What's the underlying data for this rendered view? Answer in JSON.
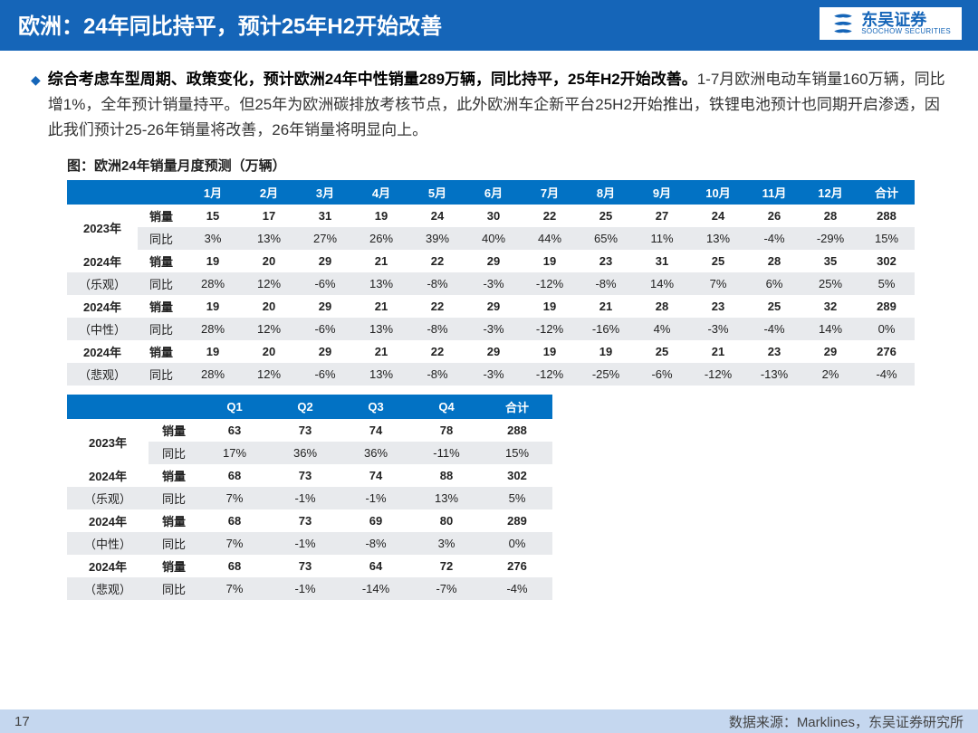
{
  "title": "欧洲：24年同比持平，预计25年H2开始改善",
  "logo": {
    "cn": "东吴证券",
    "en": "SOOCHOW SECURITIES"
  },
  "para_bold": "综合考虑车型周期、政策变化，预计欧洲24年中性销量289万辆，同比持平，25年H2开始改善。",
  "para_rest": "1-7月欧洲电动车销量160万辆，同比增1%，全年预计销量持平。但25年为欧洲碳排放考核节点，此外欧洲车企新平台25H2开始推出，铁锂电池预计也同期开启渗透，因此我们预计25-26年销量将改善，26年销量将明显向上。",
  "fig_title": "图：欧洲24年销量月度预测（万辆）",
  "table1": {
    "header_bg": "#0272c4",
    "columns": [
      "",
      "",
      "1月",
      "2月",
      "3月",
      "4月",
      "5月",
      "6月",
      "7月",
      "8月",
      "9月",
      "10月",
      "11月",
      "12月",
      "合计"
    ],
    "groups": [
      {
        "label": "2023年",
        "sub": "",
        "rows": [
          {
            "k": "销量",
            "v": [
              "15",
              "17",
              "31",
              "19",
              "24",
              "30",
              "22",
              "25",
              "27",
              "24",
              "26",
              "28",
              "288"
            ]
          },
          {
            "k": "同比",
            "v": [
              "3%",
              "13%",
              "27%",
              "26%",
              "39%",
              "40%",
              "44%",
              "65%",
              "11%",
              "13%",
              "-4%",
              "-29%",
              "15%"
            ],
            "shade": true
          }
        ]
      },
      {
        "label": "2024年",
        "sub": "（乐观）",
        "rows": [
          {
            "k": "销量",
            "v": [
              "19",
              "20",
              "29",
              "21",
              "22",
              "29",
              "19",
              "23",
              "31",
              "25",
              "28",
              "35",
              "302"
            ]
          },
          {
            "k": "同比",
            "v": [
              "28%",
              "12%",
              "-6%",
              "13%",
              "-8%",
              "-3%",
              "-12%",
              "-8%",
              "14%",
              "7%",
              "6%",
              "25%",
              "5%"
            ],
            "shade": true
          }
        ]
      },
      {
        "label": "2024年",
        "sub": "（中性）",
        "rows": [
          {
            "k": "销量",
            "v": [
              "19",
              "20",
              "29",
              "21",
              "22",
              "29",
              "19",
              "21",
              "28",
              "23",
              "25",
              "32",
              "289"
            ]
          },
          {
            "k": "同比",
            "v": [
              "28%",
              "12%",
              "-6%",
              "13%",
              "-8%",
              "-3%",
              "-12%",
              "-16%",
              "4%",
              "-3%",
              "-4%",
              "14%",
              "0%"
            ],
            "shade": true
          }
        ]
      },
      {
        "label": "2024年",
        "sub": "（悲观）",
        "rows": [
          {
            "k": "销量",
            "v": [
              "19",
              "20",
              "29",
              "21",
              "22",
              "29",
              "19",
              "19",
              "25",
              "21",
              "23",
              "29",
              "276"
            ]
          },
          {
            "k": "同比",
            "v": [
              "28%",
              "12%",
              "-6%",
              "13%",
              "-8%",
              "-3%",
              "-12%",
              "-25%",
              "-6%",
              "-12%",
              "-13%",
              "2%",
              "-4%"
            ],
            "shade": true
          }
        ]
      }
    ]
  },
  "table2": {
    "columns": [
      "",
      "",
      "Q1",
      "Q2",
      "Q3",
      "Q4",
      "合计"
    ],
    "groups": [
      {
        "label": "2023年",
        "sub": "",
        "rows": [
          {
            "k": "销量",
            "v": [
              "63",
              "73",
              "74",
              "78",
              "288"
            ]
          },
          {
            "k": "同比",
            "v": [
              "17%",
              "36%",
              "36%",
              "-11%",
              "15%"
            ],
            "shade": true
          }
        ]
      },
      {
        "label": "2024年",
        "sub": "（乐观）",
        "rows": [
          {
            "k": "销量",
            "v": [
              "68",
              "73",
              "74",
              "88",
              "302"
            ]
          },
          {
            "k": "同比",
            "v": [
              "7%",
              "-1%",
              "-1%",
              "13%",
              "5%"
            ],
            "shade": true
          }
        ]
      },
      {
        "label": "2024年",
        "sub": "（中性）",
        "rows": [
          {
            "k": "销量",
            "v": [
              "68",
              "73",
              "69",
              "80",
              "289"
            ]
          },
          {
            "k": "同比",
            "v": [
              "7%",
              "-1%",
              "-8%",
              "3%",
              "0%"
            ],
            "shade": true
          }
        ]
      },
      {
        "label": "2024年",
        "sub": "（悲观）",
        "rows": [
          {
            "k": "销量",
            "v": [
              "68",
              "73",
              "64",
              "72",
              "276"
            ]
          },
          {
            "k": "同比",
            "v": [
              "7%",
              "-1%",
              "-14%",
              "-7%",
              "-4%"
            ],
            "shade": true
          }
        ]
      }
    ]
  },
  "page_num": "17",
  "source": "数据来源：Marklines，东吴证券研究所"
}
